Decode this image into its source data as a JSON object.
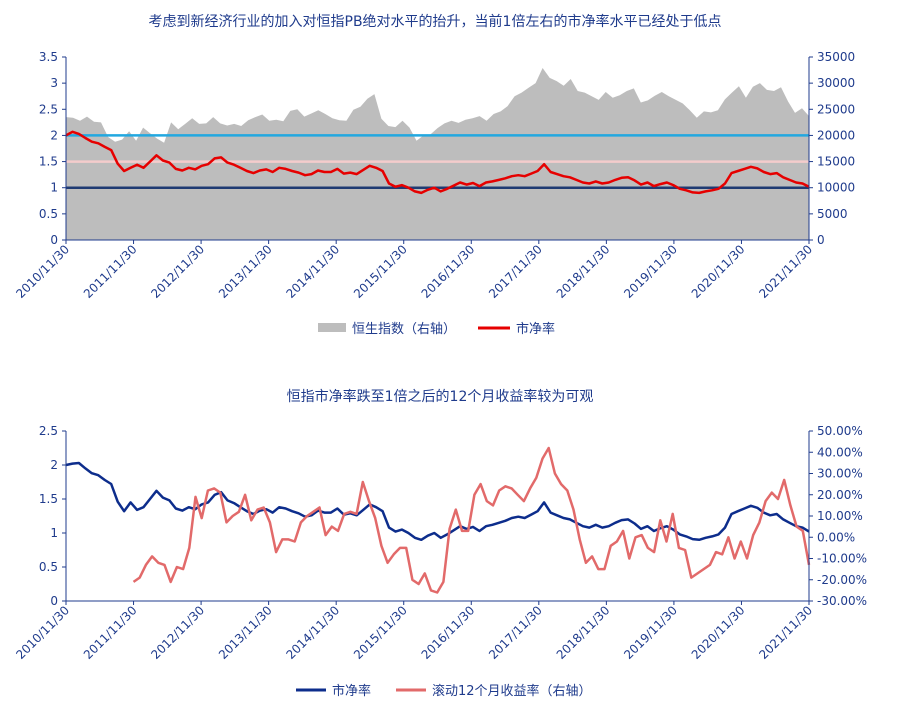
{
  "colors": {
    "area": "#bdbdbd",
    "pb_top": "#e60000",
    "line_2x": "#22a8e0",
    "line_1_5x": "#f4cccc",
    "line_1x": "#1f3b73",
    "pb_bottom": "#0d2d8c",
    "returns": "#e26a6a",
    "text": "#1f3b8c"
  },
  "chart_data": [
    {
      "type": "area+line",
      "title": "考虑到新经济行业的加入对恒指PB绝对水平的抬升，当前1倍左右的市净率水平已经处于低点",
      "x_categories": [
        "2010/11/30",
        "2011/11/30",
        "2012/11/30",
        "2013/11/30",
        "2014/11/30",
        "2015/11/30",
        "2016/11/30",
        "2017/11/30",
        "2018/11/30",
        "2019/11/30",
        "2020/11/30",
        "2021/11/30"
      ],
      "y_left": {
        "min": 0,
        "max": 3.5,
        "ticks": [
          "0",
          "0.5",
          "1",
          "1.5",
          "2",
          "2.5",
          "3",
          "3.5"
        ]
      },
      "y_right": {
        "min": 0,
        "max": 35000,
        "ticks": [
          "0",
          "5000",
          "10000",
          "15000",
          "20000",
          "25000",
          "30000",
          "35000"
        ]
      },
      "reference_lines": [
        {
          "value": 2.0,
          "color_key": "line_2x"
        },
        {
          "value": 1.5,
          "color_key": "line_1_5x"
        },
        {
          "value": 1.0,
          "color_key": "line_1x"
        }
      ],
      "series": [
        {
          "name": "恒生指数（右轴）",
          "axis": "right",
          "kind": "area",
          "values": [
            23500,
            23400,
            22800,
            23600,
            22600,
            22500,
            19700,
            18800,
            19200,
            20800,
            19000,
            21500,
            20400,
            19400,
            18600,
            22500,
            21200,
            22200,
            23300,
            22200,
            22300,
            23500,
            22300,
            21900,
            22200,
            21800,
            22900,
            23500,
            24000,
            22800,
            23000,
            22700,
            24700,
            25000,
            23600,
            24200,
            24800,
            24100,
            23300,
            22900,
            22800,
            24900,
            25500,
            27000,
            27900,
            23200,
            21800,
            21600,
            22800,
            21500,
            19000,
            20000,
            20200,
            21400,
            22300,
            22800,
            22400,
            23000,
            23300,
            23700,
            22800,
            24100,
            24600,
            25600,
            27500,
            28200,
            29100,
            30000,
            32900,
            31000,
            30400,
            29500,
            30800,
            28500,
            28200,
            27500,
            26800,
            28300,
            27200,
            27700,
            28500,
            29000,
            26300,
            26700,
            27600,
            28300,
            27500,
            26800,
            26100,
            24800,
            23400,
            24600,
            24400,
            24800,
            26900,
            28200,
            29400,
            27200,
            29300,
            30000,
            28700,
            28500,
            29200,
            26500,
            24300,
            25200,
            23700
          ],
          "x_start": 0.0,
          "x_end": 11.0
        },
        {
          "name": "市净率",
          "axis": "left",
          "kind": "line",
          "color_key": "pb_top",
          "values": [
            2.0,
            2.07,
            2.03,
            1.95,
            1.88,
            1.85,
            1.78,
            1.72,
            1.46,
            1.32,
            1.38,
            1.44,
            1.38,
            1.5,
            1.62,
            1.52,
            1.48,
            1.36,
            1.33,
            1.38,
            1.35,
            1.42,
            1.45,
            1.56,
            1.58,
            1.48,
            1.44,
            1.38,
            1.32,
            1.28,
            1.33,
            1.35,
            1.3,
            1.38,
            1.36,
            1.32,
            1.29,
            1.24,
            1.26,
            1.33,
            1.3,
            1.3,
            1.36,
            1.27,
            1.29,
            1.26,
            1.34,
            1.42,
            1.38,
            1.32,
            1.08,
            1.02,
            1.05,
            1.0,
            0.93,
            0.9,
            0.96,
            1.0,
            0.93,
            0.98,
            1.04,
            1.1,
            1.06,
            1.09,
            1.03,
            1.1,
            1.12,
            1.15,
            1.18,
            1.22,
            1.24,
            1.22,
            1.27,
            1.32,
            1.45,
            1.3,
            1.26,
            1.22,
            1.2,
            1.15,
            1.1,
            1.08,
            1.12,
            1.08,
            1.1,
            1.15,
            1.19,
            1.2,
            1.14,
            1.06,
            1.1,
            1.03,
            1.07,
            1.1,
            1.05,
            0.98,
            0.95,
            0.91,
            0.9,
            0.93,
            0.95,
            0.98,
            1.08,
            1.28,
            1.32,
            1.36,
            1.4,
            1.37,
            1.3,
            1.26,
            1.28,
            1.2,
            1.15,
            1.1,
            1.08,
            1.02
          ],
          "x_start": 0.0,
          "x_end": 11.0
        }
      ],
      "legend": [
        "恒生指数（右轴）",
        "市净率"
      ]
    },
    {
      "type": "line",
      "title": "恒指市净率跌至1倍之后的12个月收益率较为可观",
      "x_categories": [
        "2010/11/30",
        "2011/11/30",
        "2012/11/30",
        "2013/11/30",
        "2014/11/30",
        "2015/11/30",
        "2016/11/30",
        "2017/11/30",
        "2018/11/30",
        "2019/11/30",
        "2020/11/30",
        "2021/11/30"
      ],
      "y_left": {
        "min": 0,
        "max": 2.5,
        "ticks": [
          "0",
          "0.5",
          "1",
          "1.5",
          "2",
          "2.5"
        ]
      },
      "y_right": {
        "min": -30,
        "max": 50,
        "ticks": [
          "-30.00%",
          "-20.00%",
          "-10.00%",
          "0.00%",
          "10.00%",
          "20.00%",
          "30.00%",
          "40.00%",
          "50.00%"
        ]
      },
      "series": [
        {
          "name": "市净率",
          "axis": "left",
          "color_key": "pb_bottom",
          "values": [
            2.0,
            2.02,
            2.03,
            1.95,
            1.88,
            1.85,
            1.78,
            1.72,
            1.46,
            1.32,
            1.45,
            1.34,
            1.38,
            1.5,
            1.62,
            1.52,
            1.48,
            1.36,
            1.33,
            1.38,
            1.35,
            1.42,
            1.45,
            1.56,
            1.6,
            1.48,
            1.44,
            1.38,
            1.32,
            1.28,
            1.33,
            1.35,
            1.3,
            1.38,
            1.36,
            1.32,
            1.29,
            1.24,
            1.26,
            1.33,
            1.3,
            1.3,
            1.36,
            1.27,
            1.29,
            1.26,
            1.34,
            1.42,
            1.38,
            1.32,
            1.08,
            1.02,
            1.05,
            1.0,
            0.93,
            0.9,
            0.96,
            1.0,
            0.93,
            0.98,
            1.04,
            1.1,
            1.06,
            1.09,
            1.03,
            1.1,
            1.12,
            1.15,
            1.18,
            1.22,
            1.24,
            1.22,
            1.27,
            1.32,
            1.45,
            1.3,
            1.26,
            1.22,
            1.2,
            1.15,
            1.1,
            1.08,
            1.12,
            1.08,
            1.1,
            1.15,
            1.19,
            1.2,
            1.14,
            1.06,
            1.1,
            1.03,
            1.07,
            1.1,
            1.05,
            0.98,
            0.95,
            0.91,
            0.9,
            0.93,
            0.95,
            0.98,
            1.08,
            1.28,
            1.32,
            1.36,
            1.4,
            1.37,
            1.3,
            1.26,
            1.28,
            1.2,
            1.15,
            1.1,
            1.08,
            1.02
          ],
          "x_start": 0.0,
          "x_end": 11.0
        },
        {
          "name": "滚动12个月收益率（右轴）",
          "axis": "right",
          "color_key": "returns",
          "values": [
            -21,
            -19,
            -13,
            -9,
            -12,
            -13,
            -21,
            -14,
            -15,
            -5,
            19,
            9,
            22,
            23,
            21,
            7,
            10,
            12,
            20,
            8,
            13,
            14,
            7,
            -7,
            -1,
            -1,
            -2,
            7,
            10,
            12,
            14,
            1,
            5,
            3,
            11,
            12,
            11,
            26,
            17,
            9,
            -4,
            -12,
            -8,
            -5,
            -5,
            -20,
            -22,
            -17,
            -25,
            -26,
            -21,
            4,
            13,
            3,
            3,
            20,
            25,
            17,
            15,
            22,
            24,
            23,
            20,
            17,
            23,
            28,
            37,
            42,
            30,
            25,
            22,
            13,
            -1,
            -12,
            -9,
            -15,
            -15,
            -4,
            -2,
            3,
            -10,
            0,
            1,
            -5,
            -7,
            8,
            -2,
            11,
            -5,
            -6,
            -19,
            -17,
            -15,
            -13,
            -7,
            -8,
            0,
            -10,
            -2,
            -10,
            1,
            7,
            17,
            21,
            18,
            27,
            15,
            5,
            3,
            -13
          ],
          "x_start": 1.0,
          "x_end": 11.0
        }
      ],
      "legend": [
        "市净率",
        "滚动12个月收益率（右轴）"
      ]
    }
  ]
}
